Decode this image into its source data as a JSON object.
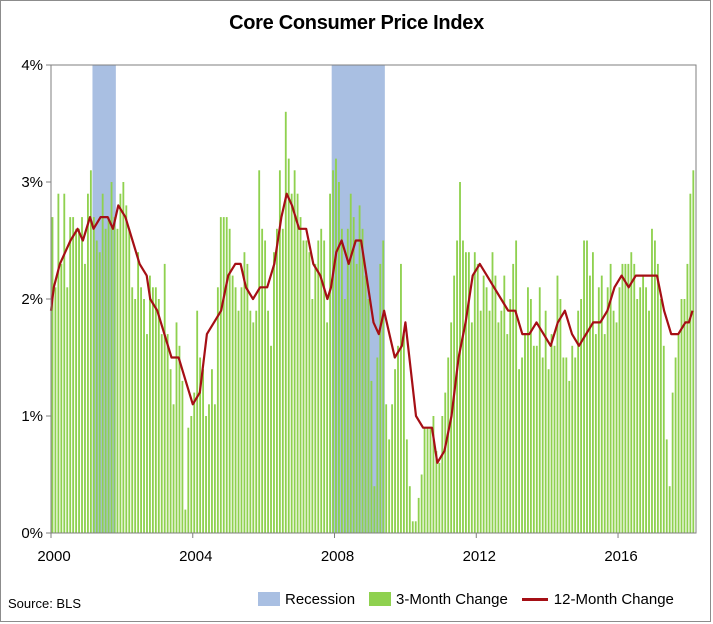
{
  "chart_data": {
    "type": "bar",
    "title": "Core Consumer Price Index",
    "source": "Source: BLS",
    "xlabel": "",
    "ylabel": "",
    "x_ticks": [
      "2000",
      "2004",
      "2008",
      "2012",
      "2016"
    ],
    "y_ticks": [
      "0%",
      "1%",
      "2%",
      "3%",
      "4%"
    ],
    "xlim": [
      2000,
      2018.2
    ],
    "ylim": [
      0,
      4
    ],
    "grid": false,
    "legend_position": "bottom-right",
    "colors": {
      "recession": "#a9bfe2",
      "bars": "#8fd14f",
      "line": "#a50f15"
    },
    "recessions": [
      {
        "start": 2001.17,
        "end": 2001.83
      },
      {
        "start": 2007.92,
        "end": 2009.42
      }
    ],
    "series": [
      {
        "name": "Recession",
        "kind": "band"
      },
      {
        "name": "3-Month Change",
        "kind": "bar",
        "start": 2000.0,
        "step": 0.08333,
        "values": [
          2.7,
          2.1,
          2.9,
          2.3,
          2.9,
          2.1,
          2.7,
          2.7,
          2.6,
          2.6,
          2.7,
          2.3,
          2.9,
          3.1,
          2.7,
          2.5,
          2.4,
          2.9,
          2.6,
          2.7,
          3.0,
          2.7,
          2.6,
          2.9,
          3.0,
          2.8,
          2.6,
          2.1,
          2.0,
          2.4,
          2.1,
          2.0,
          1.7,
          2.2,
          2.1,
          2.1,
          2.0,
          1.7,
          2.3,
          1.7,
          1.4,
          1.1,
          1.8,
          1.6,
          1.3,
          0.2,
          0.9,
          1.0,
          1.2,
          1.9,
          1.5,
          1.4,
          1.0,
          1.1,
          1.4,
          1.1,
          2.1,
          2.7,
          2.7,
          2.7,
          2.6,
          2.2,
          2.1,
          1.9,
          2.1,
          2.4,
          2.3,
          1.9,
          1.8,
          1.9,
          3.1,
          2.6,
          2.5,
          1.9,
          1.6,
          2.4,
          2.6,
          3.1,
          2.6,
          3.6,
          3.2,
          2.9,
          3.1,
          2.9,
          2.7,
          2.5,
          2.5,
          2.4,
          2.0,
          2.3,
          2.5,
          2.6,
          2.5,
          1.8,
          2.9,
          3.1,
          3.2,
          3.0,
          2.6,
          2.0,
          2.6,
          2.9,
          2.7,
          2.3,
          2.8,
          2.6,
          2.2,
          2.0,
          1.3,
          0.4,
          1.5,
          2.3,
          2.5,
          1.1,
          0.8,
          1.1,
          1.4,
          1.6,
          2.3,
          1.7,
          0.8,
          0.4,
          0.1,
          0.1,
          0.3,
          0.5,
          0.9,
          0.9,
          0.9,
          1.0,
          0.7,
          0.6,
          1.0,
          1.2,
          1.5,
          1.8,
          2.2,
          2.5,
          3.0,
          2.5,
          2.4,
          2.4,
          1.8,
          2.4,
          2.3,
          1.9,
          2.2,
          2.1,
          1.9,
          2.4,
          2.2,
          1.8,
          1.9,
          2.2,
          1.7,
          2.0,
          2.3,
          2.5,
          1.4,
          1.5,
          1.7,
          2.1,
          2.0,
          1.6,
          1.6,
          2.1,
          1.5,
          1.9,
          1.4,
          1.7,
          1.6,
          2.2,
          2.0,
          1.5,
          1.5,
          1.3,
          1.6,
          1.5,
          1.9,
          2.0,
          2.5,
          2.5,
          2.2,
          2.4,
          1.7,
          2.1,
          2.2,
          1.7,
          2.1,
          2.3,
          1.9,
          1.8,
          2.1,
          2.3,
          2.3,
          2.3,
          2.4,
          2.3,
          2.0,
          2.1,
          2.2,
          2.1,
          1.9,
          2.6,
          2.5,
          2.3,
          2.0,
          1.6,
          0.8,
          0.4,
          1.2,
          1.5,
          1.7,
          2.0,
          2.0,
          2.3,
          2.9,
          3.1
        ]
      },
      {
        "name": "12-Month Change",
        "kind": "line",
        "points": [
          [
            2000.0,
            1.9
          ],
          [
            2000.08,
            2.1
          ],
          [
            2000.25,
            2.3
          ],
          [
            2000.4,
            2.4
          ],
          [
            2000.55,
            2.5
          ],
          [
            2000.75,
            2.6
          ],
          [
            2000.9,
            2.5
          ],
          [
            2001.1,
            2.7
          ],
          [
            2001.2,
            2.6
          ],
          [
            2001.4,
            2.7
          ],
          [
            2001.6,
            2.7
          ],
          [
            2001.75,
            2.6
          ],
          [
            2001.9,
            2.8
          ],
          [
            2002.1,
            2.7
          ],
          [
            2002.3,
            2.5
          ],
          [
            2002.5,
            2.3
          ],
          [
            2002.7,
            2.2
          ],
          [
            2002.8,
            2.0
          ],
          [
            2003.0,
            1.9
          ],
          [
            2003.2,
            1.7
          ],
          [
            2003.4,
            1.5
          ],
          [
            2003.6,
            1.5
          ],
          [
            2003.8,
            1.3
          ],
          [
            2004.0,
            1.1
          ],
          [
            2004.2,
            1.2
          ],
          [
            2004.4,
            1.7
          ],
          [
            2004.6,
            1.8
          ],
          [
            2004.8,
            1.9
          ],
          [
            2005.0,
            2.2
          ],
          [
            2005.2,
            2.3
          ],
          [
            2005.35,
            2.3
          ],
          [
            2005.5,
            2.1
          ],
          [
            2005.7,
            2.0
          ],
          [
            2005.9,
            2.1
          ],
          [
            2006.1,
            2.1
          ],
          [
            2006.3,
            2.3
          ],
          [
            2006.5,
            2.7
          ],
          [
            2006.65,
            2.9
          ],
          [
            2006.8,
            2.8
          ],
          [
            2007.0,
            2.6
          ],
          [
            2007.2,
            2.6
          ],
          [
            2007.4,
            2.3
          ],
          [
            2007.6,
            2.2
          ],
          [
            2007.8,
            2.0
          ],
          [
            2007.9,
            2.1
          ],
          [
            2008.05,
            2.4
          ],
          [
            2008.2,
            2.5
          ],
          [
            2008.4,
            2.3
          ],
          [
            2008.6,
            2.5
          ],
          [
            2008.75,
            2.5
          ],
          [
            2008.9,
            2.2
          ],
          [
            2009.1,
            1.8
          ],
          [
            2009.25,
            1.7
          ],
          [
            2009.4,
            1.9
          ],
          [
            2009.55,
            1.7
          ],
          [
            2009.7,
            1.5
          ],
          [
            2009.9,
            1.6
          ],
          [
            2010.0,
            1.8
          ],
          [
            2010.15,
            1.4
          ],
          [
            2010.3,
            1.0
          ],
          [
            2010.5,
            0.9
          ],
          [
            2010.75,
            0.9
          ],
          [
            2010.9,
            0.6
          ],
          [
            2011.1,
            0.7
          ],
          [
            2011.3,
            1.0
          ],
          [
            2011.5,
            1.5
          ],
          [
            2011.7,
            1.8
          ],
          [
            2011.9,
            2.2
          ],
          [
            2012.1,
            2.3
          ],
          [
            2012.3,
            2.2
          ],
          [
            2012.5,
            2.1
          ],
          [
            2012.7,
            2.0
          ],
          [
            2012.9,
            1.9
          ],
          [
            2013.1,
            1.9
          ],
          [
            2013.3,
            1.7
          ],
          [
            2013.5,
            1.7
          ],
          [
            2013.7,
            1.8
          ],
          [
            2013.9,
            1.7
          ],
          [
            2014.1,
            1.6
          ],
          [
            2014.3,
            1.8
          ],
          [
            2014.5,
            1.9
          ],
          [
            2014.7,
            1.7
          ],
          [
            2014.9,
            1.6
          ],
          [
            2015.1,
            1.7
          ],
          [
            2015.3,
            1.8
          ],
          [
            2015.5,
            1.8
          ],
          [
            2015.7,
            1.9
          ],
          [
            2015.9,
            2.1
          ],
          [
            2016.1,
            2.2
          ],
          [
            2016.3,
            2.1
          ],
          [
            2016.5,
            2.2
          ],
          [
            2016.7,
            2.2
          ],
          [
            2016.9,
            2.2
          ],
          [
            2017.1,
            2.2
          ],
          [
            2017.3,
            1.9
          ],
          [
            2017.5,
            1.7
          ],
          [
            2017.7,
            1.7
          ],
          [
            2017.9,
            1.8
          ],
          [
            2018.0,
            1.8
          ],
          [
            2018.1,
            1.9
          ]
        ]
      }
    ]
  }
}
